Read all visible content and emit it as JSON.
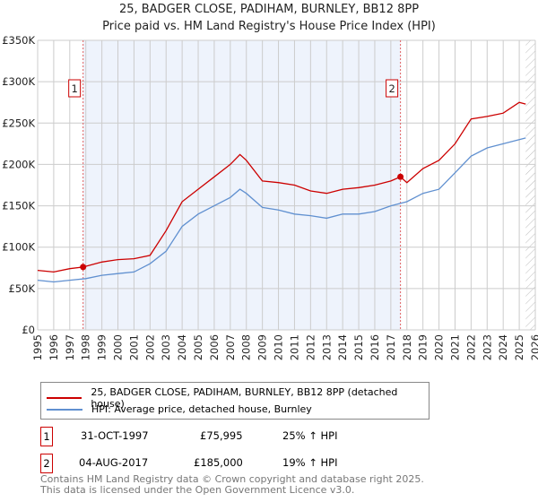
{
  "chart_data": {
    "type": "line",
    "title": "25, BADGER CLOSE, PADIHAM, BURNLEY, BB12 8PP",
    "subtitle": "Price paid vs. HM Land Registry's House Price Index (HPI)",
    "xlim": [
      1995,
      2026
    ],
    "ylim": [
      0,
      350000
    ],
    "x_ticks": [
      "1995",
      "1996",
      "1997",
      "1998",
      "1999",
      "2000",
      "2001",
      "2002",
      "2003",
      "2004",
      "2005",
      "2006",
      "2007",
      "2008",
      "2009",
      "2010",
      "2011",
      "2012",
      "2013",
      "2014",
      "2015",
      "2016",
      "2017",
      "2018",
      "2019",
      "2020",
      "2021",
      "2022",
      "2023",
      "2024",
      "2025",
      "2026"
    ],
    "y_ticks": [
      {
        "v": 0,
        "label": "£0"
      },
      {
        "v": 50000,
        "label": "£50K"
      },
      {
        "v": 100000,
        "label": "£100K"
      },
      {
        "v": 150000,
        "label": "£150K"
      },
      {
        "v": 200000,
        "label": "£200K"
      },
      {
        "v": 250000,
        "label": "£250K"
      },
      {
        "v": 300000,
        "label": "£300K"
      },
      {
        "v": 350000,
        "label": "£350K"
      }
    ],
    "grid": true,
    "series": [
      {
        "name": "25, BADGER CLOSE, PADIHAM, BURNLEY, BB12 8PP (detached house)",
        "color": "#cc0000",
        "x": [
          1995,
          1996,
          1997,
          1997.83,
          1999,
          2000,
          2001,
          2002,
          2003,
          2004,
          2005,
          2006,
          2007,
          2007.6,
          2008,
          2009,
          2010,
          2011,
          2012,
          2013,
          2014,
          2015,
          2016,
          2017,
          2017.6,
          2018,
          2019,
          2020,
          2021,
          2022,
          2023,
          2024,
          2025,
          2025.4
        ],
        "values": [
          72000,
          70000,
          74000,
          75995,
          82000,
          85000,
          86000,
          90000,
          120000,
          155000,
          170000,
          185000,
          200000,
          212000,
          205000,
          180000,
          178000,
          175000,
          168000,
          165000,
          170000,
          172000,
          175000,
          180000,
          185000,
          178000,
          195000,
          205000,
          225000,
          255000,
          258000,
          262000,
          275000,
          273000
        ]
      },
      {
        "name": "HPI: Average price, detached house, Burnley",
        "color": "#6090d0",
        "x": [
          1995,
          1996,
          1997,
          1998,
          1999,
          2000,
          2001,
          2002,
          2003,
          2004,
          2005,
          2006,
          2007,
          2007.6,
          2008,
          2009,
          2010,
          2011,
          2012,
          2013,
          2014,
          2015,
          2016,
          2017,
          2018,
          2019,
          2020,
          2021,
          2022,
          2023,
          2024,
          2025,
          2025.4
        ],
        "values": [
          60000,
          58000,
          60000,
          62000,
          66000,
          68000,
          70000,
          80000,
          95000,
          125000,
          140000,
          150000,
          160000,
          170000,
          165000,
          148000,
          145000,
          140000,
          138000,
          135000,
          140000,
          140000,
          143000,
          150000,
          155000,
          165000,
          170000,
          190000,
          210000,
          220000,
          225000,
          230000,
          232000
        ]
      }
    ],
    "markers": [
      {
        "label": "1",
        "x": 1997.83,
        "value": 75995
      },
      {
        "label": "2",
        "x": 2017.6,
        "value": 185000
      }
    ],
    "shaded_range": [
      1997.83,
      2017.6
    ],
    "hatched_from": 2025.4
  },
  "legend": {
    "red": "25, BADGER CLOSE, PADIHAM, BURNLEY, BB12 8PP (detached house)",
    "blue": "HPI: Average price, detached house, Burnley"
  },
  "transactions": [
    {
      "n": "1",
      "date": "31-OCT-1997",
      "price": "£75,995",
      "hpi": "25% ↑ HPI"
    },
    {
      "n": "2",
      "date": "04-AUG-2017",
      "price": "£185,000",
      "hpi": "19% ↑ HPI"
    }
  ],
  "footer": {
    "line1": "Contains HM Land Registry data © Crown copyright and database right 2025.",
    "line2": "This data is licensed under the Open Government Licence v3.0."
  }
}
